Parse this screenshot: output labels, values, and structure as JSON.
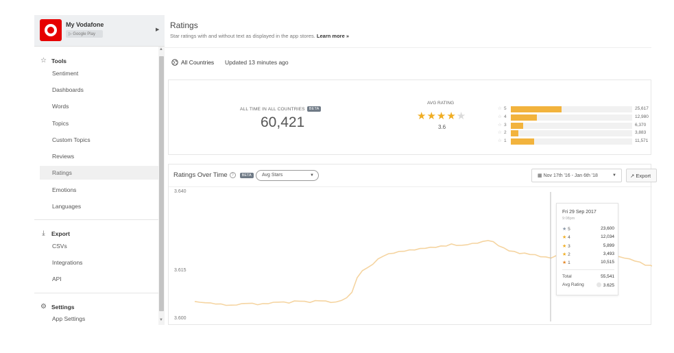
{
  "app": {
    "name": "My Vodafone",
    "store": "Google Play"
  },
  "sidebar": {
    "tools_label": "Tools",
    "tools": [
      {
        "label": "Sentiment"
      },
      {
        "label": "Dashboards"
      },
      {
        "label": "Words"
      },
      {
        "label": "Topics"
      },
      {
        "label": "Custom Topics"
      },
      {
        "label": "Reviews"
      },
      {
        "label": "Ratings",
        "active": true
      },
      {
        "label": "Emotions"
      },
      {
        "label": "Languages"
      }
    ],
    "export_label": "Export",
    "export": [
      {
        "label": "CSVs"
      },
      {
        "label": "Integrations"
      },
      {
        "label": "API"
      }
    ],
    "settings_label": "Settings",
    "settings": [
      {
        "label": "App Settings"
      }
    ]
  },
  "header": {
    "title": "Ratings",
    "subtitle": "Star ratings with and without text as displayed in the app stores.",
    "learn_more": "Learn more »"
  },
  "filters": {
    "country": "All Countries",
    "updated": "Updated 13 minutes ago"
  },
  "summary": {
    "alltime_label": "ALL TIME IN ALL COUNTRIES",
    "beta": "BETA",
    "alltime_value": "60,421",
    "avg_label": "AVG RATING",
    "avg_value": "3.6",
    "avg_numeric": 3.6,
    "distribution": [
      {
        "stars": "5",
        "count": "25,617",
        "value": 25617
      },
      {
        "stars": "4",
        "count": "12,980",
        "value": 12980
      },
      {
        "stars": "3",
        "count": "6,370",
        "value": 6370
      },
      {
        "stars": "2",
        "count": "3,883",
        "value": 3883
      },
      {
        "stars": "1",
        "count": "11,571",
        "value": 11571
      }
    ],
    "accent_color": "#f2b33d"
  },
  "chart_panel": {
    "title": "Ratings Over Time",
    "beta": "BETA",
    "metric_select": "Avg Stars",
    "date_range": "Nov 17th '16 - Jan 6th '18",
    "export_label": "Export"
  },
  "chart_data": {
    "type": "line",
    "series": [
      {
        "values": [
          3.6063,
          3.6058,
          3.6059,
          3.6056,
          3.6055,
          3.6053,
          3.6051,
          3.6049,
          3.6052,
          3.6054,
          3.6057,
          3.6055,
          3.6053,
          3.6054,
          3.6056,
          3.6058,
          3.6061,
          3.6059,
          3.6058,
          3.6062,
          3.6064,
          3.6061,
          3.606,
          3.6063,
          3.6065,
          3.6062,
          3.606,
          3.6059,
          3.6066,
          3.6072,
          3.6091,
          3.6134,
          3.6158,
          3.6165,
          3.6178,
          3.6192,
          3.6203,
          3.6208,
          3.6212,
          3.6215,
          3.6218,
          3.622,
          3.6222,
          3.6224,
          3.6227,
          3.6228,
          3.623,
          3.6232,
          3.6234,
          3.6238,
          3.6236,
          3.6234,
          3.6238,
          3.624,
          3.6243,
          3.6246,
          3.6251,
          3.6245,
          3.6235,
          3.6226,
          3.6219,
          3.6215,
          3.6211,
          3.621,
          3.6208,
          3.6205,
          3.6201,
          3.6198,
          3.6197,
          3.6202,
          3.6203,
          3.62,
          3.6201,
          3.6202,
          3.6203,
          3.6201,
          3.62,
          3.6198,
          3.6199,
          3.62,
          3.6201,
          3.6199,
          3.6197,
          3.6192,
          3.6188,
          3.6182,
          3.6175,
          3.6172,
          3.6168,
          3.6165
        ]
      }
    ],
    "yticks": [
      "3.640",
      "3.615",
      "3.600"
    ],
    "ylim": [
      3.6,
      3.64
    ],
    "grid": false,
    "line_color": "#f5d4a0"
  },
  "tooltip": {
    "date": "Fri 29 Sep 2017",
    "time": "9:08pm",
    "rows": [
      {
        "star": "5",
        "value": "23,600",
        "color": "#8a97a6"
      },
      {
        "star": "4",
        "value": "12,034",
        "color": "#f0ad22"
      },
      {
        "star": "3",
        "value": "5,899",
        "color": "#f0ad22"
      },
      {
        "star": "2",
        "value": "3,493",
        "color": "#f0ad22"
      },
      {
        "star": "1",
        "value": "10,515",
        "color": "#e5892b"
      }
    ],
    "total_label": "Total",
    "total": "55,541",
    "avg_label": "Avg Rating",
    "avg": "3.625"
  }
}
